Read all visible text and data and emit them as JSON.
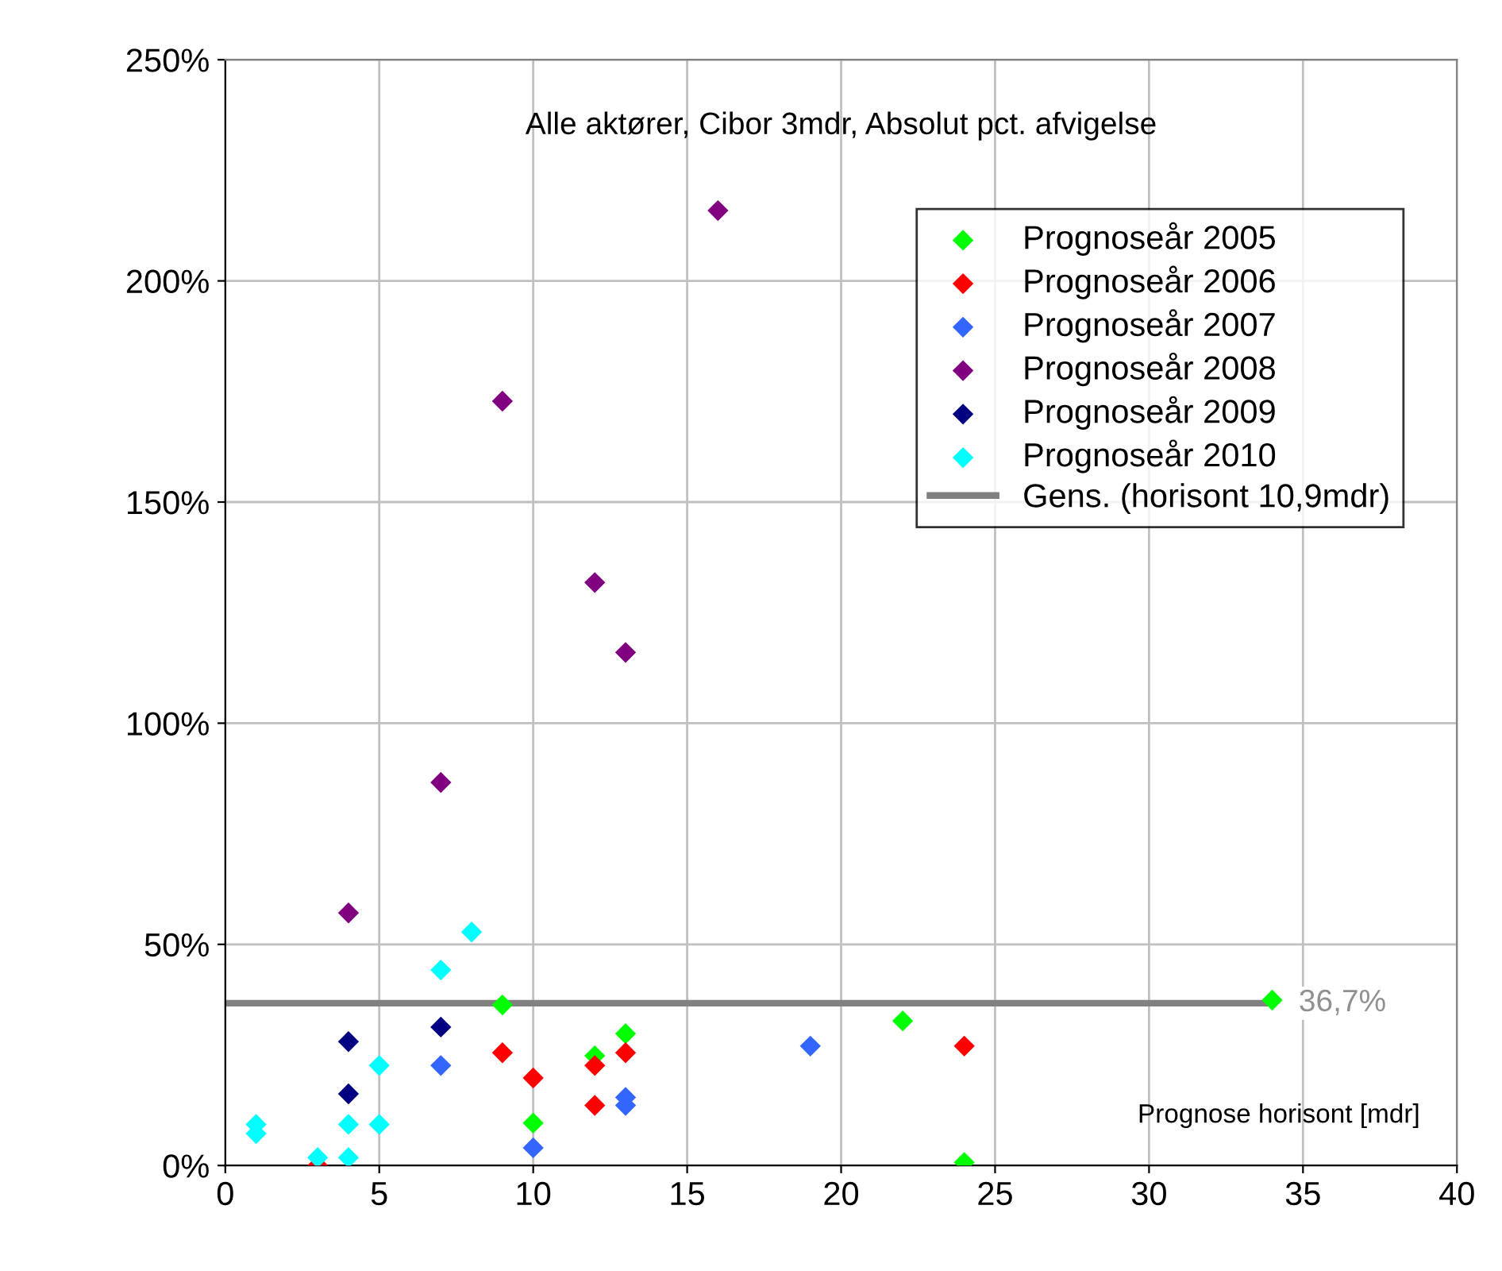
{
  "chart_data": {
    "type": "scatter",
    "title": "Alle aktører, Cibor 3mdr, Absolut pct. afvigelse",
    "xlabel": "Prognose horisont [mdr]",
    "xlim": [
      0,
      40
    ],
    "xticks": [
      0,
      5,
      10,
      15,
      20,
      25,
      30,
      35,
      40
    ],
    "ylim": [
      0,
      250
    ],
    "yticks": [
      {
        "value": 0,
        "label": "0%"
      },
      {
        "value": 50,
        "label": "50%"
      },
      {
        "value": 100,
        "label": "100%"
      },
      {
        "value": 150,
        "label": "150%"
      },
      {
        "value": 200,
        "label": "200%"
      },
      {
        "value": 250,
        "label": "250%"
      }
    ],
    "grid": true,
    "legend": "top right",
    "marker": "diamond",
    "series": [
      {
        "name": "Prognoseår 2005",
        "color": "#00ff00",
        "x": [
          9,
          10,
          12,
          13,
          22,
          24,
          34
        ],
        "values": [
          36.3,
          9.6,
          24.8,
          29.8,
          32.7,
          0.7,
          37.4
        ]
      },
      {
        "name": "Prognoseår 2006",
        "color": "#ff0000",
        "x": [
          3,
          9,
          10,
          12,
          12,
          13,
          24
        ],
        "values": [
          0.0,
          25.5,
          19.8,
          13.6,
          22.6,
          25.5,
          27.0
        ]
      },
      {
        "name": "Prognoseår 2007",
        "color": "#3366ff",
        "x": [
          7,
          10,
          13,
          13,
          19
        ],
        "values": [
          22.6,
          4.0,
          15.4,
          13.6,
          27.0
        ]
      },
      {
        "name": "Prognoseår 2008",
        "color": "#800080",
        "x": [
          4,
          7,
          9,
          12,
          13,
          16
        ],
        "values": [
          57.1,
          86.6,
          172.8,
          131.8,
          116.0,
          215.9
        ]
      },
      {
        "name": "Prognoseår 2009",
        "color": "#000080",
        "x": [
          4,
          4,
          7
        ],
        "values": [
          28.0,
          16.2,
          31.3
        ]
      },
      {
        "name": "Prognoseår 2010",
        "color": "#00ffff",
        "x": [
          1,
          1,
          3,
          4,
          4,
          5,
          5,
          7,
          8
        ],
        "values": [
          9.3,
          7.2,
          1.8,
          9.3,
          1.8,
          22.6,
          9.3,
          44.2,
          52.8
        ]
      },
      {
        "name": "Gens. (horisont 10,9mdr)",
        "type": "line",
        "marker": "none",
        "color": "#808080",
        "x": [
          0,
          34
        ],
        "values": [
          36.7,
          36.7
        ]
      }
    ],
    "annotations": [
      {
        "text": "36,7%",
        "x": 34,
        "y": 36.7
      }
    ]
  }
}
